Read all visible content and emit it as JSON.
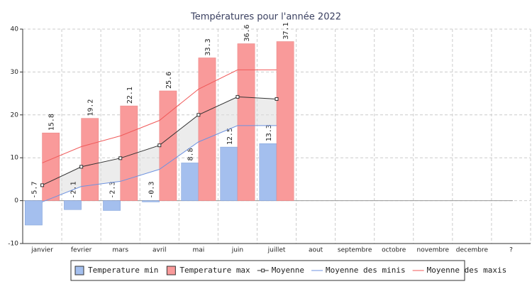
{
  "chart_data": {
    "type": "bar",
    "title": "Températures pour l'année 2022",
    "categories": [
      "janvier",
      "fevrier",
      "mars",
      "avril",
      "mai",
      "juin",
      "juillet",
      "aout",
      "septembre",
      "octobre",
      "novembre",
      "decembre",
      "?"
    ],
    "ylim": [
      -10,
      40
    ],
    "yticks": [
      -10,
      0,
      10,
      20,
      30,
      40
    ],
    "grid": true,
    "legend": "bottom",
    "series": [
      {
        "name": "Temperature min",
        "type": "bar",
        "color": "#a4bfee",
        "border": "#7f9fd8",
        "values": [
          -5.7,
          -2.1,
          -2.3,
          -0.3,
          8.8,
          12.5,
          13.3,
          null,
          null,
          null,
          null,
          null,
          null
        ]
      },
      {
        "name": "Temperature max",
        "type": "bar",
        "color": "#f99a9a",
        "border": "#e88080",
        "values": [
          15.8,
          19.2,
          22.1,
          25.6,
          33.3,
          36.6,
          37.1,
          null,
          null,
          null,
          null,
          null,
          null
        ]
      },
      {
        "name": "Moyenne",
        "type": "line",
        "color": "#333333",
        "marker": "square",
        "fill": "#dcdcdc",
        "values": [
          3.6,
          7.9,
          9.9,
          12.9,
          20.0,
          24.2,
          23.7,
          null,
          null,
          null,
          null,
          null,
          null
        ]
      },
      {
        "name": "Moyenne des minis",
        "type": "line",
        "color": "#6f93e0",
        "values": [
          -0.3,
          3.3,
          4.5,
          7.3,
          13.7,
          17.5,
          17.5,
          null,
          null,
          null,
          null,
          null,
          null
        ]
      },
      {
        "name": "Moyenne des maxis",
        "type": "line",
        "color": "#f05a5a",
        "values": [
          8.8,
          12.6,
          15.1,
          18.7,
          26.0,
          30.5,
          30.5,
          null,
          null,
          null,
          null,
          null,
          null
        ]
      }
    ]
  }
}
